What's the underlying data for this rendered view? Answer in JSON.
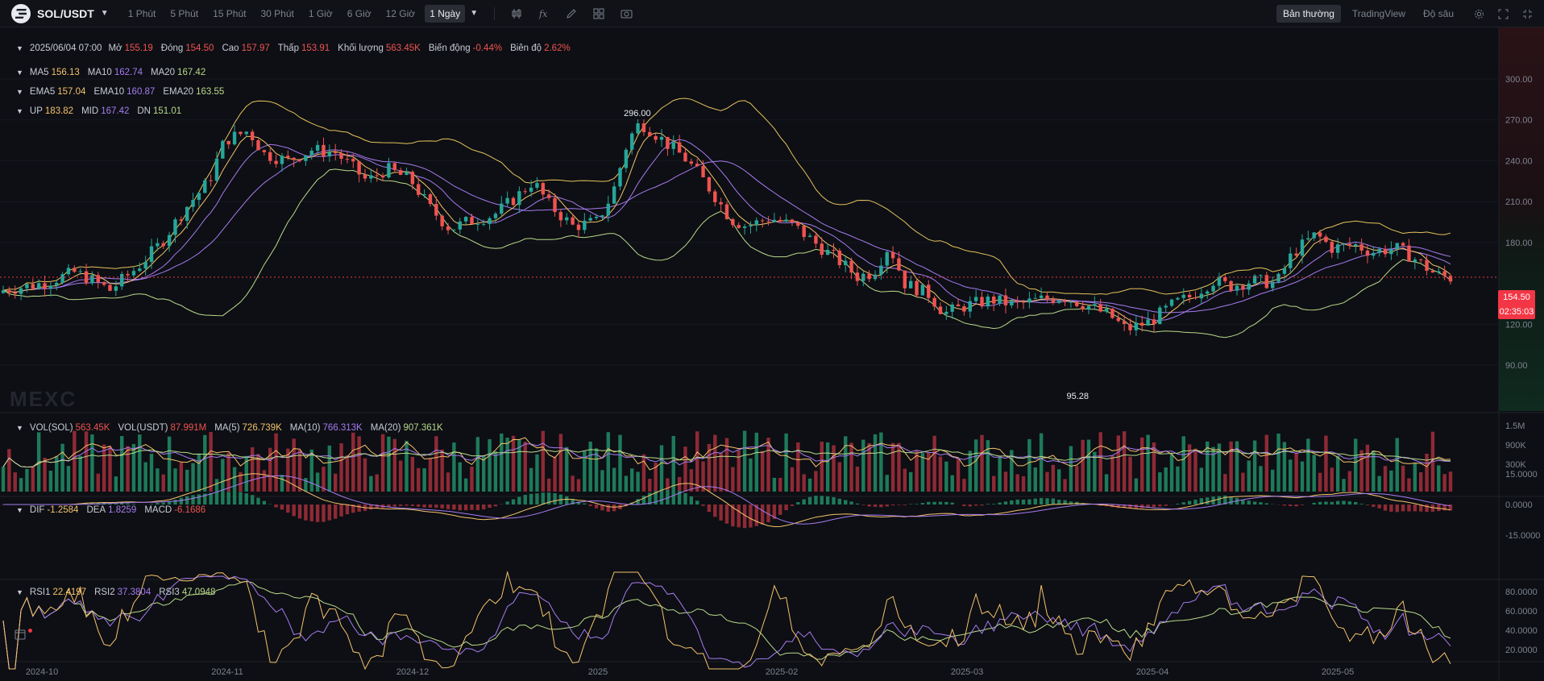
{
  "header": {
    "pair": "SOL/USDT",
    "timeframes": [
      "1 Phút",
      "5 Phút",
      "15 Phút",
      "30 Phút",
      "1 Giờ",
      "6 Giờ",
      "12 Giờ",
      "1 Ngày"
    ],
    "active_timeframe": "1 Ngày",
    "view_tabs": [
      "Bản thường",
      "TradingView",
      "Độ sâu"
    ],
    "active_view": "Bản thường"
  },
  "ohlc": {
    "date": "2025/06/04 07:00",
    "open_label": "Mở",
    "open": "155.19",
    "close_label": "Đóng",
    "close": "154.50",
    "high_label": "Cao",
    "high": "157.97",
    "low_label": "Thấp",
    "low": "153.91",
    "volume_label": "Khối lượng",
    "volume": "563.45K",
    "change_label": "Biến động",
    "change": "-0.44%",
    "amplitude_label": "Biên độ",
    "amplitude": "2.62%"
  },
  "ma": {
    "ma5_label": "MA5",
    "ma5": "156.13",
    "ma10_label": "MA10",
    "ma10": "162.74",
    "ma20_label": "MA20",
    "ma20": "167.42"
  },
  "ema": {
    "ema5_label": "EMA5",
    "ema5": "157.04",
    "ema10_label": "EMA10",
    "ema10": "160.87",
    "ema20_label": "EMA20",
    "ema20": "163.55"
  },
  "boll": {
    "up_label": "UP",
    "up": "183.82",
    "mid_label": "MID",
    "mid": "167.42",
    "dn_label": "DN",
    "dn": "151.01"
  },
  "vol": {
    "sol_label": "VOL(SOL)",
    "sol": "563.45K",
    "usdt_label": "VOL(USDT)",
    "usdt": "87.991M",
    "ma5_label": "MA(5)",
    "ma5": "726.739K",
    "ma10_label": "MA(10)",
    "ma10": "766.313K",
    "ma20_label": "MA(20)",
    "ma20": "907.361K"
  },
  "macd": {
    "dif_label": "DIF",
    "dif": "-1.2584",
    "dea_label": "DEA",
    "dea": "1.8259",
    "macd_label": "MACD",
    "macd": "-6.1686"
  },
  "rsi": {
    "rsi1_label": "RSI1",
    "rsi1": "22.4197",
    "rsi2_label": "RSI2",
    "rsi2": "37.3804",
    "rsi3_label": "RSI3",
    "rsi3": "47.0948"
  },
  "last_price": "154.50",
  "countdown": "02:35:03",
  "max_label": "296.00",
  "min_label": "95.28",
  "watermark": "MEXC",
  "colors": {
    "up": "#26a69a",
    "down": "#ef5350",
    "ma5": "#f5c26b",
    "ma10": "#a77bf0",
    "ma20": "#b9d98a",
    "boll": "#e6c35c",
    "price": "#f23645"
  },
  "chart_data": {
    "type": "candlestick",
    "price_axis": {
      "ticks": [
        300,
        270,
        240,
        210,
        180,
        120,
        90
      ]
    },
    "volume_axis": {
      "ticks": [
        "1.5M",
        "900K",
        "300K"
      ]
    },
    "macd_axis": {
      "ticks": [
        "15.0000",
        "0.0000",
        "-15.0000"
      ]
    },
    "rsi_axis": {
      "ticks": [
        "80.0000",
        "60.0000",
        "40.0000",
        "20.0000"
      ]
    },
    "x_ticks": [
      "2024-10",
      "2024-11",
      "2024-12",
      "2025",
      "2025-02",
      "2025-03",
      "2025-04",
      "2025-05"
    ],
    "price_path": [
      [
        0,
        145
      ],
      [
        10,
        150
      ],
      [
        18,
        158
      ],
      [
        22,
        153
      ],
      [
        27,
        145
      ],
      [
        34,
        162
      ],
      [
        40,
        180
      ],
      [
        46,
        205
      ],
      [
        52,
        225
      ],
      [
        56,
        255
      ],
      [
        62,
        262
      ],
      [
        66,
        245
      ],
      [
        72,
        240
      ],
      [
        78,
        248
      ],
      [
        84,
        246
      ],
      [
        88,
        236
      ],
      [
        92,
        225
      ],
      [
        97,
        234
      ],
      [
        103,
        226
      ],
      [
        108,
        205
      ],
      [
        113,
        190
      ],
      [
        118,
        196
      ],
      [
        124,
        200
      ],
      [
        130,
        214
      ],
      [
        134,
        225
      ],
      [
        138,
        208
      ],
      [
        144,
        192
      ],
      [
        150,
        195
      ],
      [
        154,
        215
      ],
      [
        158,
        255
      ],
      [
        161,
        268
      ],
      [
        164,
        262
      ],
      [
        168,
        252
      ],
      [
        172,
        243
      ],
      [
        176,
        230
      ],
      [
        180,
        214
      ],
      [
        184,
        197
      ],
      [
        188,
        192
      ],
      [
        194,
        198
      ],
      [
        200,
        192
      ],
      [
        206,
        178
      ],
      [
        212,
        165
      ],
      [
        216,
        155
      ],
      [
        220,
        158
      ],
      [
        224,
        178
      ],
      [
        228,
        150
      ],
      [
        234,
        142
      ],
      [
        238,
        128
      ],
      [
        244,
        134
      ],
      [
        250,
        138
      ],
      [
        256,
        134
      ],
      [
        262,
        138
      ],
      [
        268,
        140
      ],
      [
        274,
        134
      ],
      [
        280,
        126
      ],
      [
        284,
        116
      ],
      [
        290,
        122
      ],
      [
        296,
        135
      ],
      [
        300,
        140
      ],
      [
        306,
        152
      ],
      [
        310,
        148
      ],
      [
        316,
        152
      ],
      [
        322,
        150
      ],
      [
        326,
        172
      ],
      [
        332,
        186
      ],
      [
        336,
        176
      ],
      [
        342,
        178
      ],
      [
        346,
        173
      ],
      [
        352,
        176
      ],
      [
        356,
        170
      ],
      [
        362,
        157
      ],
      [
        366,
        154
      ]
    ]
  }
}
